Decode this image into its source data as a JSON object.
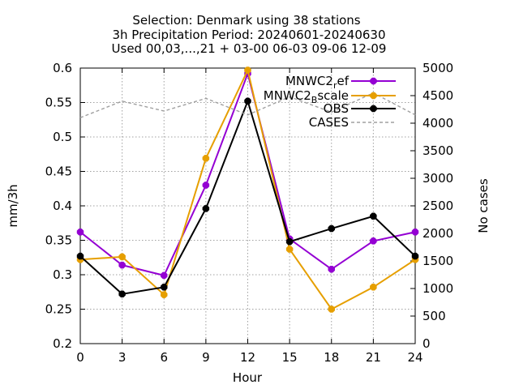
{
  "chart_data": {
    "type": "line",
    "title": {
      "line1": "Selection: Denmark using     38 stations",
      "line2": "3h Precipitation   Period: 20240601-20240630",
      "line3": "Used 00,03,...,21 + 03-00 06-03 09-06 12-09"
    },
    "xlabel": "Hour",
    "ylabel": "mm/3h",
    "y2label": "No cases",
    "xlim": [
      0,
      24
    ],
    "ylim": [
      0.2,
      0.6
    ],
    "y2lim": [
      0,
      5000
    ],
    "x": [
      0,
      3,
      6,
      9,
      12,
      15,
      18,
      21,
      24
    ],
    "xticks": [
      "0",
      "3",
      "6",
      "9",
      "12",
      "15",
      "18",
      "21",
      "24"
    ],
    "yticks": [
      "0.2",
      "0.25",
      "0.3",
      "0.35",
      "0.4",
      "0.45",
      "0.5",
      "0.55",
      "0.6"
    ],
    "y2ticks": [
      "0",
      "500",
      "1000",
      "1500",
      "2000",
      "2500",
      "3000",
      "3500",
      "4000",
      "4500",
      "5000"
    ],
    "grid": true,
    "legend_position": "top-right",
    "series": [
      {
        "name": "MNWC2ref",
        "name_main": "MNWC2",
        "name_sub": "r",
        "name_tail": "ef",
        "axis": "y",
        "color": "#9400d3",
        "values": [
          0.362,
          0.314,
          0.299,
          0.43,
          0.592,
          0.352,
          0.308,
          0.349,
          0.362
        ]
      },
      {
        "name": "MNWC2Bscale",
        "name_main": "MNWC2",
        "name_sub": "B",
        "name_tail": "scale",
        "axis": "y",
        "color": "#e69f00",
        "values": [
          0.322,
          0.326,
          0.271,
          0.469,
          0.597,
          0.337,
          0.25,
          0.282,
          0.322
        ]
      },
      {
        "name": "OBS",
        "axis": "y",
        "color": "#000000",
        "values": [
          0.327,
          0.272,
          0.282,
          0.396,
          0.552,
          0.348,
          0.367,
          0.385,
          0.327
        ]
      },
      {
        "name": "CASES",
        "axis": "y2",
        "color": "#a0a0a0",
        "values": [
          4100,
          4400,
          4220,
          4450,
          4150,
          4480,
          4200,
          4550,
          4150
        ]
      }
    ]
  }
}
